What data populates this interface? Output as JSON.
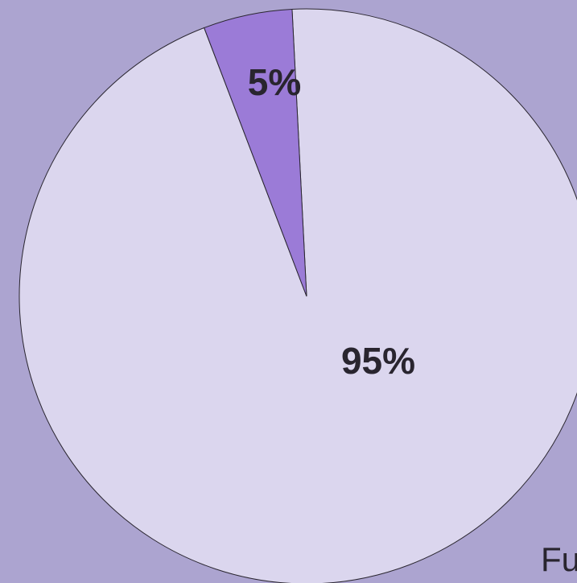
{
  "chart_data": {
    "type": "pie",
    "values": [
      95,
      5
    ],
    "value_labels": [
      "95%",
      "5%"
    ],
    "colors": [
      "#dbd6ee",
      "#9b7bd7"
    ],
    "annotation": "Fu"
  }
}
